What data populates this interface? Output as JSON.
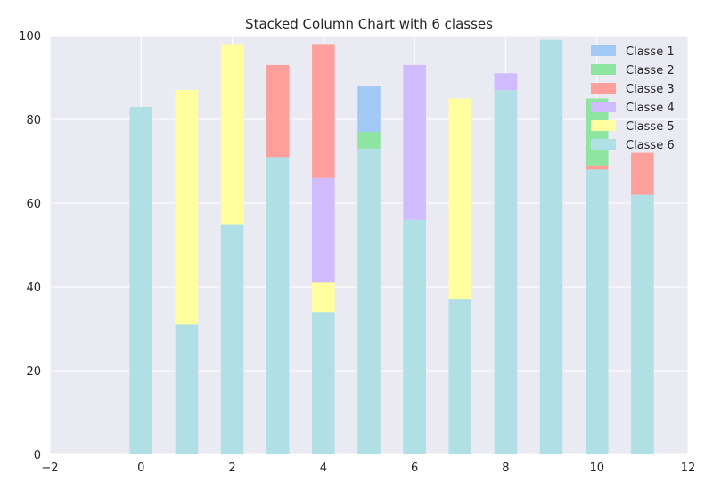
{
  "chart_data": {
    "type": "bar",
    "stacked": true,
    "title": "Stacked Column Chart with 6 classes",
    "xlabel": "",
    "ylabel": "",
    "xlim": [
      -2,
      12
    ],
    "ylim": [
      0,
      100
    ],
    "x_ticks": [
      -2,
      0,
      2,
      4,
      6,
      8,
      10,
      12
    ],
    "y_ticks": [
      0,
      20,
      40,
      60,
      80,
      100
    ],
    "grid": true,
    "legend_position": "top-right",
    "x": [
      0,
      1,
      2,
      3,
      4,
      5,
      6,
      7,
      8,
      9,
      10,
      11
    ],
    "series": [
      {
        "name": "Classe 6",
        "color": "#b0dfe5",
        "values": [
          83,
          31,
          55,
          71,
          34,
          73,
          56,
          37,
          87,
          99,
          68,
          62
        ]
      },
      {
        "name": "Classe 5",
        "color": "#ffff9f",
        "values": [
          0,
          56,
          43,
          0,
          7,
          0,
          0,
          48,
          0,
          0,
          0,
          0
        ]
      },
      {
        "name": "Classe 4",
        "color": "#d0bbff",
        "values": [
          0,
          0,
          0,
          0,
          25,
          0,
          37,
          0,
          4,
          0,
          0,
          0
        ]
      },
      {
        "name": "Classe 3",
        "color": "#ff9f9b",
        "values": [
          0,
          0,
          0,
          22,
          32,
          0,
          0,
          0,
          0,
          0,
          1,
          10
        ]
      },
      {
        "name": "Classe 2",
        "color": "#8de5a1",
        "values": [
          0,
          0,
          0,
          0,
          0,
          4,
          0,
          0,
          0,
          0,
          16,
          0
        ]
      },
      {
        "name": "Classe 1",
        "color": "#a1c9f4",
        "values": [
          0,
          0,
          0,
          0,
          0,
          11,
          0,
          0,
          0,
          0,
          0,
          0
        ]
      }
    ],
    "legend_order": [
      "Classe 1",
      "Classe 2",
      "Classe 3",
      "Classe 4",
      "Classe 5",
      "Classe 6"
    ],
    "colors": {
      "plot_background": "#eaeaf2",
      "grid": "#ffffff"
    }
  }
}
